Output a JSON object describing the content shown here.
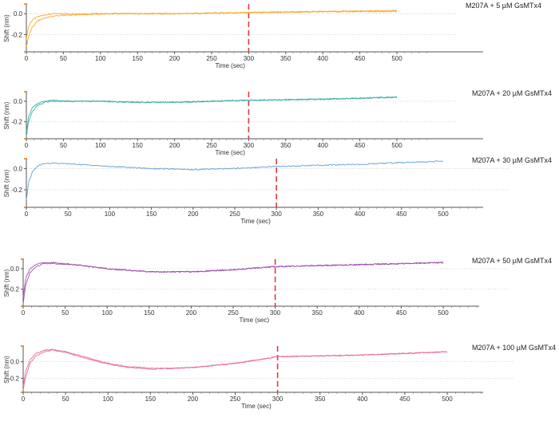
{
  "chart_data": [
    {
      "type": "line",
      "title": "M207A + 5 µM GsMTx4",
      "xlabel": "Time (sec)",
      "ylabel": "Shift (nm)",
      "xlim": [
        0,
        550
      ],
      "ylim": [
        -0.35,
        0.07
      ],
      "xticks": [
        "0",
        "50",
        "100",
        "150",
        "200",
        "250",
        "300",
        "350",
        "400",
        "450",
        "500"
      ],
      "yticks": [
        "0.0",
        "-0.2"
      ],
      "dashed_marker_x": 300,
      "color": "#f5a623",
      "series": [
        {
          "x": [
            0,
            3,
            8,
            15,
            25,
            40,
            70,
            120,
            200,
            300,
            400,
            500
          ],
          "values": [
            -0.24,
            -0.12,
            -0.06,
            -0.03,
            -0.01,
            0.0,
            0.0,
            0.0,
            0.0,
            0.01,
            0.02,
            0.03
          ]
        },
        {
          "x": [
            0,
            3,
            8,
            15,
            25,
            40,
            70,
            120,
            200,
            300,
            400,
            500
          ],
          "values": [
            -0.32,
            -0.22,
            -0.13,
            -0.07,
            -0.04,
            -0.02,
            -0.01,
            0.0,
            0.0,
            0.01,
            0.02,
            0.02
          ]
        }
      ]
    },
    {
      "type": "line",
      "title": "M207A + 20 µM GsMTx4",
      "xlabel": "Time (sec)",
      "ylabel": "Shift (nm)",
      "xlim": [
        0,
        550
      ],
      "ylim": [
        -0.35,
        0.07
      ],
      "xticks": [
        "0",
        "50",
        "100",
        "150",
        "200",
        "250",
        "300",
        "350",
        "400",
        "450",
        "500"
      ],
      "yticks": [
        "0.0",
        "-0.2"
      ],
      "dashed_marker_x": 300,
      "color": "#3aaea5",
      "series": [
        {
          "x": [
            0,
            3,
            8,
            15,
            25,
            35,
            60,
            100,
            150,
            200,
            250,
            300,
            400,
            500
          ],
          "values": [
            -0.3,
            -0.15,
            -0.06,
            -0.02,
            0.0,
            0.01,
            0.0,
            0.0,
            -0.01,
            -0.01,
            0.0,
            0.01,
            0.02,
            0.04
          ]
        },
        {
          "x": [
            0,
            3,
            8,
            15,
            25,
            35,
            60,
            100,
            150,
            200,
            250,
            300,
            400,
            500
          ],
          "values": [
            -0.34,
            -0.2,
            -0.1,
            -0.04,
            -0.01,
            0.0,
            0.0,
            0.0,
            -0.01,
            -0.01,
            0.0,
            0.01,
            0.02,
            0.04
          ]
        }
      ]
    },
    {
      "type": "line",
      "title": "M207A + 30 µM GsMTx4",
      "xlabel": "Time (sec)",
      "ylabel": "Shift (nm)",
      "xlim": [
        0,
        550
      ],
      "ylim": [
        -0.35,
        0.07
      ],
      "xticks": [
        "0",
        "50",
        "100",
        "150",
        "200",
        "250",
        "300",
        "350",
        "400",
        "450",
        "500"
      ],
      "yticks": [
        "0.0",
        "-0.2"
      ],
      "dashed_marker_x": 300,
      "color": "#5b9bd5",
      "series": [
        {
          "x": [
            0,
            3,
            8,
            15,
            25,
            35,
            60,
            100,
            150,
            200,
            250,
            300,
            400,
            500
          ],
          "values": [
            -0.3,
            -0.12,
            -0.02,
            0.03,
            0.05,
            0.05,
            0.04,
            0.02,
            0.0,
            -0.01,
            0.0,
            0.02,
            0.04,
            0.07
          ]
        }
      ]
    },
    {
      "type": "line",
      "title": "M207A + 50 µM GsMTx4",
      "xlabel": "Time (sec)",
      "ylabel": "Shift (nm)",
      "xlim": [
        0,
        550
      ],
      "ylim": [
        -0.35,
        0.07
      ],
      "xticks": [
        "0",
        "50",
        "100",
        "150",
        "200",
        "250",
        "300",
        "350",
        "400",
        "450",
        "500"
      ],
      "yticks": [
        "0.0",
        "-0.2"
      ],
      "dashed_marker_x": 300,
      "color": "#9b4fa8",
      "series": [
        {
          "x": [
            0,
            3,
            8,
            15,
            25,
            35,
            60,
            100,
            150,
            200,
            250,
            300,
            400,
            500
          ],
          "values": [
            -0.28,
            -0.1,
            0.0,
            0.04,
            0.06,
            0.06,
            0.04,
            0.0,
            -0.03,
            -0.03,
            -0.01,
            0.02,
            0.04,
            0.06
          ]
        },
        {
          "x": [
            0,
            3,
            8,
            15,
            25,
            35,
            60,
            100,
            150,
            200,
            250,
            300,
            400,
            500
          ],
          "values": [
            -0.34,
            -0.16,
            -0.04,
            0.02,
            0.05,
            0.05,
            0.04,
            0.0,
            -0.03,
            -0.03,
            -0.01,
            0.02,
            0.04,
            0.06
          ]
        }
      ]
    },
    {
      "type": "line",
      "title": "M207A + 100 µM GsMTx4",
      "xlabel": "Time (sec)",
      "ylabel": "Shift (nm)",
      "xlim": [
        0,
        550
      ],
      "ylim": [
        -0.35,
        0.16
      ],
      "xticks": [
        "0",
        "50",
        "100",
        "150",
        "200",
        "250",
        "300",
        "350",
        "400",
        "450",
        "500"
      ],
      "yticks": [
        "0.0",
        "-0.2"
      ],
      "dashed_marker_x": 300,
      "color": "#e8679a",
      "series": [
        {
          "x": [
            0,
            3,
            8,
            15,
            25,
            35,
            50,
            75,
            100,
            125,
            150,
            175,
            200,
            250,
            300,
            350,
            400,
            450,
            500
          ],
          "values": [
            -0.3,
            -0.12,
            0.02,
            0.1,
            0.14,
            0.15,
            0.12,
            0.05,
            -0.02,
            -0.06,
            -0.08,
            -0.08,
            -0.07,
            -0.02,
            0.06,
            0.07,
            0.08,
            0.1,
            0.12
          ]
        },
        {
          "x": [
            0,
            3,
            8,
            15,
            25,
            35,
            50,
            75,
            100,
            125,
            150,
            175,
            200,
            250,
            300,
            350,
            400,
            450,
            500
          ],
          "values": [
            -0.34,
            -0.18,
            -0.02,
            0.07,
            0.12,
            0.14,
            0.11,
            0.04,
            -0.03,
            -0.07,
            -0.09,
            -0.08,
            -0.07,
            -0.02,
            0.06,
            0.07,
            0.08,
            0.1,
            0.12
          ]
        }
      ]
    }
  ]
}
